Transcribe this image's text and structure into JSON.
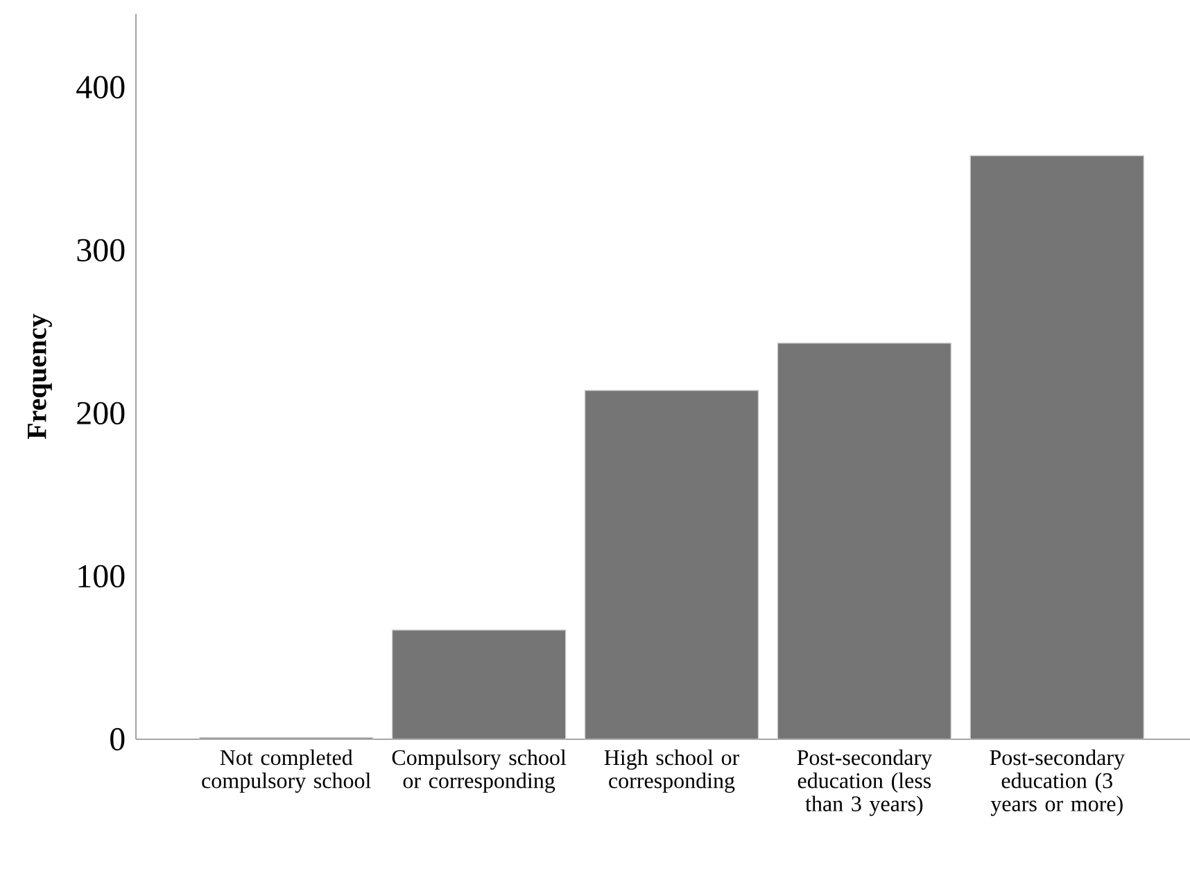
{
  "chart_data": {
    "type": "bar",
    "ylabel": "Frequency",
    "categories": [
      "Not completed compulsory school",
      "Compulsory school or corresponding",
      "High school or corresponding",
      "Post-secondary education (less than 3 years)",
      "Post-secondary education (3 years or more)"
    ],
    "values": [
      1,
      67,
      214,
      243,
      358
    ],
    "color": "#757575",
    "ylim": [
      0,
      445
    ],
    "yticks": [
      0,
      100,
      200,
      300,
      400
    ],
    "grid": false
  }
}
